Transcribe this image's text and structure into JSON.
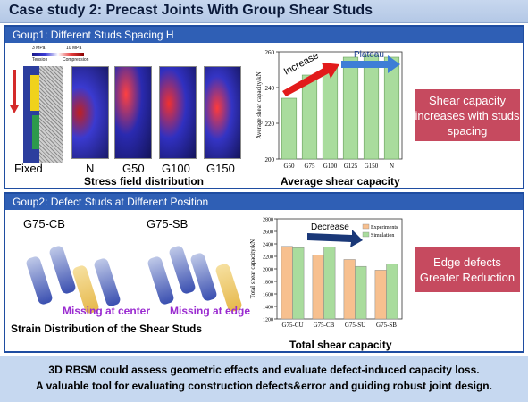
{
  "title": "Case study 2: Precast Joints With Group Shear Studs",
  "group1": {
    "heading": "Goup1: Different Studs Spacing H",
    "legend_low": "3 MPa",
    "legend_high": "10 MPa",
    "legend_tension": "Tension",
    "legend_compression": "Compression",
    "panel_labels": [
      "Fixed",
      "N",
      "G50",
      "G100",
      "G150"
    ],
    "caption": "Stress field distribution",
    "chart_caption": "Average shear capacity",
    "callout": "Shear capacity increases with studs spacing"
  },
  "group2": {
    "heading": "Goup2: Defect Studs at Different Position",
    "label_cb": "G75-CB",
    "label_sb": "G75-SB",
    "missing_center": "Missing at center",
    "missing_edge": "Missing at edge",
    "caption": "Strain Distribution of the Shear Studs",
    "chart_caption": "Total shear capacity",
    "callout": "Edge defects Greater Reduction"
  },
  "footer": {
    "line1": "3D RBSM could assess geometric effects and evaluate defect-induced capacity loss.",
    "line2": "A valuable tool for evaluating construction defects&error and guiding robust joint design."
  },
  "chart_data": [
    {
      "type": "bar",
      "ylabel": "Average shear capacity/kN",
      "categories": [
        "G50",
        "G75",
        "G100",
        "G125",
        "G150",
        "N"
      ],
      "values": [
        234,
        247,
        252,
        257,
        258,
        257
      ],
      "ylim": [
        200,
        260
      ],
      "yticks": [
        200,
        220,
        240,
        260
      ],
      "color": "#a9dc9d",
      "annotations": [
        "Increase",
        "Plateau"
      ]
    },
    {
      "type": "bar",
      "ylabel": "Total shear capacity/kN",
      "categories": [
        "G75-CU",
        "G75-CB",
        "G75-SU",
        "G75-SB"
      ],
      "series": [
        {
          "name": "Experiments",
          "values": [
            2360,
            2220,
            2150,
            1980
          ],
          "color": "#f7c08f"
        },
        {
          "name": "Simulation",
          "values": [
            2340,
            2350,
            2040,
            2080
          ],
          "color": "#a9dc9d"
        }
      ],
      "ylim": [
        1200,
        2800
      ],
      "yticks": [
        1200,
        1400,
        1600,
        1800,
        2000,
        2200,
        2400,
        2600,
        2800
      ],
      "annotations": [
        "Decrease"
      ]
    }
  ]
}
